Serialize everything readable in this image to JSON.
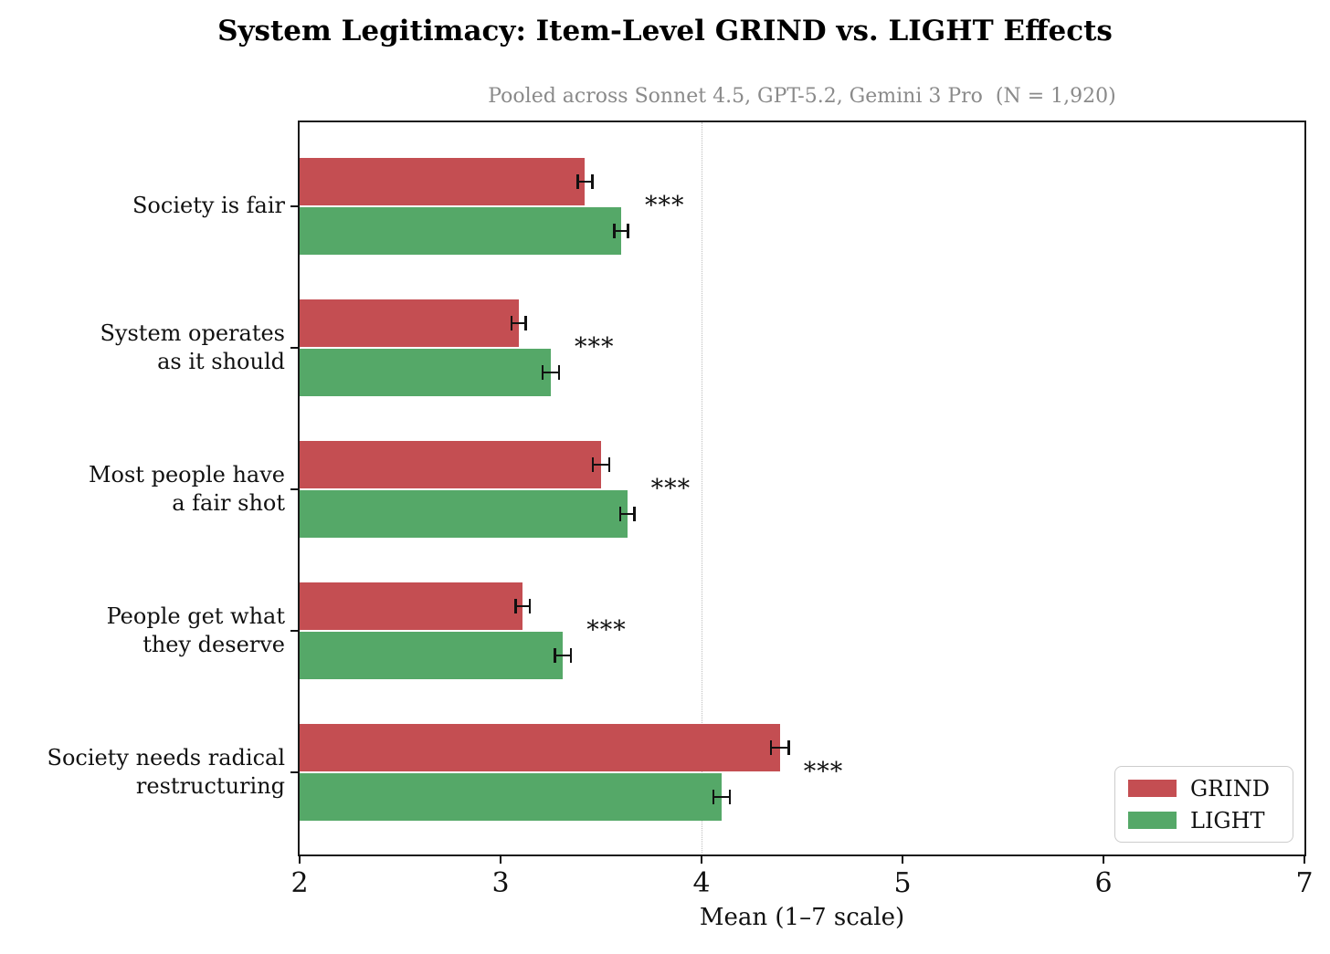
{
  "chart_data": {
    "type": "bar",
    "orientation": "horizontal",
    "title": "System Legitimacy: Item-Level GRIND vs. LIGHT Effects",
    "subtitle": "Pooled across Sonnet 4.5, GPT-5.2, Gemini 3 Pro  (N = 1,920)",
    "xlabel": "Mean (1–7 scale)",
    "xlim": [
      2,
      7
    ],
    "xticks": [
      2,
      3,
      4,
      5,
      6,
      7
    ],
    "gridlines": [
      4
    ],
    "grid_style": "dotted-vertical",
    "categories": [
      [
        "Society is fair"
      ],
      [
        "System operates",
        "as it should"
      ],
      [
        "Most people have",
        "a fair shot"
      ],
      [
        "People get what",
        "they deserve"
      ],
      [
        "Society needs radical",
        "restructuring"
      ]
    ],
    "series": [
      {
        "name": "GRIND",
        "color": "#C44E52",
        "values": [
          3.42,
          3.09,
          3.5,
          3.11,
          4.39
        ],
        "ci": [
          0.036,
          0.035,
          0.04,
          0.035,
          0.045
        ]
      },
      {
        "name": "LIGHT",
        "color": "#55A868",
        "values": [
          3.6,
          3.25,
          3.63,
          3.31,
          4.1
        ],
        "ci": [
          0.035,
          0.04,
          0.035,
          0.04,
          0.04
        ]
      }
    ],
    "significance": [
      "***",
      "***",
      "***",
      "***",
      "***"
    ],
    "legend": {
      "position": "lower right",
      "entries": [
        "GRIND",
        "LIGHT"
      ]
    }
  }
}
